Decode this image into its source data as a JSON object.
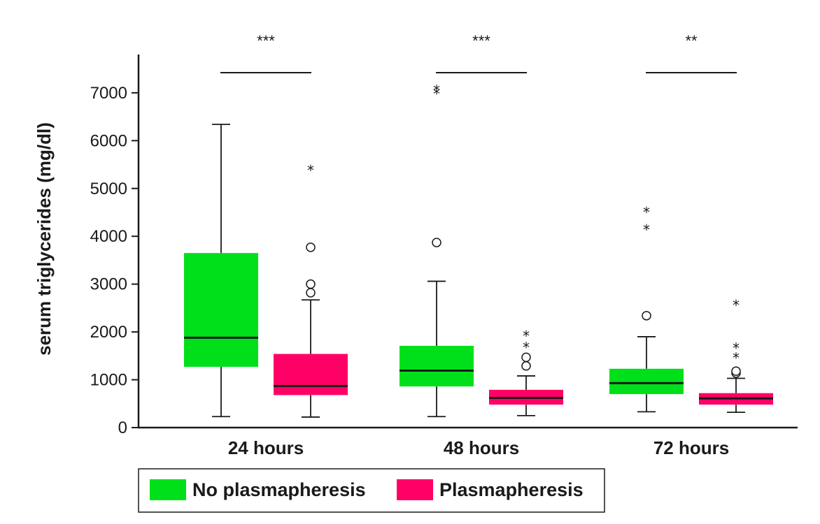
{
  "chart_data": {
    "type": "boxplot",
    "ylabel": "serum triglycerides (mg/dl)",
    "ylim": [
      0,
      7700
    ],
    "yticks": [
      0,
      1000,
      2000,
      3000,
      4000,
      5000,
      6000,
      7000
    ],
    "categories": [
      "24 hours",
      "48 hours",
      "72 hours"
    ],
    "series": [
      {
        "name": "No plasmapheresis",
        "color": "#00e01a",
        "boxes": [
          {
            "min": 230,
            "q1": 1270,
            "median": 1880,
            "q3": 3650,
            "max": 6340,
            "outliers": [],
            "extremes": []
          },
          {
            "min": 230,
            "q1": 860,
            "median": 1190,
            "q3": 1710,
            "max": 3060,
            "outliers": [
              3870
            ],
            "extremes": [
              7020,
              7090
            ]
          },
          {
            "min": 330,
            "q1": 700,
            "median": 930,
            "q3": 1230,
            "max": 1900,
            "outliers": [
              2340
            ],
            "extremes": [
              4180,
              4540
            ]
          }
        ]
      },
      {
        "name": "Plasmapheresis",
        "color": "#ff0066",
        "boxes": [
          {
            "min": 220,
            "q1": 680,
            "median": 870,
            "q3": 1540,
            "max": 2670,
            "outliers": [
              2820,
              3000,
              3770
            ],
            "extremes": [
              5420
            ]
          },
          {
            "min": 250,
            "q1": 480,
            "median": 620,
            "q3": 790,
            "max": 1080,
            "outliers": [
              1290,
              1470
            ],
            "extremes": [
              1720,
              1960
            ]
          },
          {
            "min": 320,
            "q1": 480,
            "median": 610,
            "q3": 720,
            "max": 1030,
            "outliers": [
              1140,
              1180
            ],
            "extremes": [
              1500,
              1700,
              2600
            ]
          }
        ]
      }
    ],
    "significance": [
      "***",
      "***",
      "**"
    ],
    "legend": {
      "position": "bottom-left"
    }
  }
}
